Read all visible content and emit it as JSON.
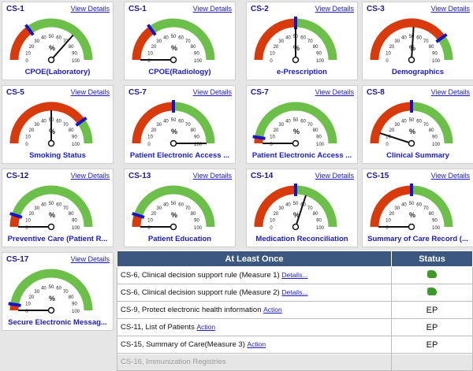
{
  "view_details_label": "View Details",
  "colors": {
    "red": "#d93a0c",
    "green": "#6cc04a",
    "needle": "#111111",
    "marker": "#1515cc"
  },
  "gauge_ticks": [
    "0",
    "10",
    "20",
    "30",
    "40",
    "50",
    "60",
    "70",
    "80",
    "90",
    "100"
  ],
  "gauge_unit": "%",
  "gauges": [
    {
      "code": "CS-1",
      "title": "CPOE(Laboratory)",
      "threshold": 30,
      "value": 73
    },
    {
      "code": "CS-1",
      "title": "CPOE(Radiology)",
      "threshold": 30,
      "value": 0
    },
    {
      "code": "CS-2",
      "title": "e-Prescription",
      "threshold": 50,
      "value": 50
    },
    {
      "code": "CS-3",
      "title": "Demographics",
      "threshold": 80,
      "value": 52
    },
    {
      "code": "CS-5",
      "title": "Smoking Status",
      "threshold": 80,
      "value": 50
    },
    {
      "code": "CS-7",
      "title": "Patient Electronic Access ...",
      "threshold": 50,
      "value": 100
    },
    {
      "code": "CS-7",
      "title": "Patient Electronic Access ...",
      "threshold": 5,
      "value": 0
    },
    {
      "code": "CS-8",
      "title": "Clinical Summary",
      "threshold": 50,
      "value": 10
    },
    {
      "code": "CS-12",
      "title": "Preventive Care (Patient R...",
      "threshold": 10,
      "value": 0
    },
    {
      "code": "CS-13",
      "title": "Patient Education",
      "threshold": 10,
      "value": 0
    },
    {
      "code": "CS-14",
      "title": "Medication Reconciliation",
      "threshold": 50,
      "value": 60
    },
    {
      "code": "CS-15",
      "title": "Summary of Care Record (...",
      "threshold": 50,
      "value": 0
    },
    {
      "code": "CS-17",
      "title": "Secure Electronic Messag...",
      "threshold": 5,
      "value": 0
    }
  ],
  "table": {
    "headers": [
      "At Least Once",
      "Status"
    ],
    "rows": [
      {
        "text": "CS-6, Clinical decision support rule (Measure 1)",
        "link": "Details...",
        "status": "",
        "status_icon": "thumbs-up-icon",
        "disabled": false
      },
      {
        "text": "CS-6, Clinical decision support rule (Measure 2)",
        "link": "Details...",
        "status": "",
        "status_icon": "thumbs-up-icon",
        "disabled": false
      },
      {
        "text": "CS-9, Protect electronic health information",
        "link": "Action",
        "status": "EP",
        "status_icon": "",
        "disabled": false
      },
      {
        "text": "CS-11, List of Patients",
        "link": "Action",
        "status": "EP",
        "status_icon": "",
        "disabled": false
      },
      {
        "text": "CS-15, Summary of Care(Measure 3)",
        "link": "Action",
        "status": "EP",
        "status_icon": "",
        "disabled": false
      },
      {
        "text": "CS-16, Immunization Registries",
        "link": "",
        "status": "",
        "status_icon": "",
        "disabled": true
      }
    ]
  }
}
